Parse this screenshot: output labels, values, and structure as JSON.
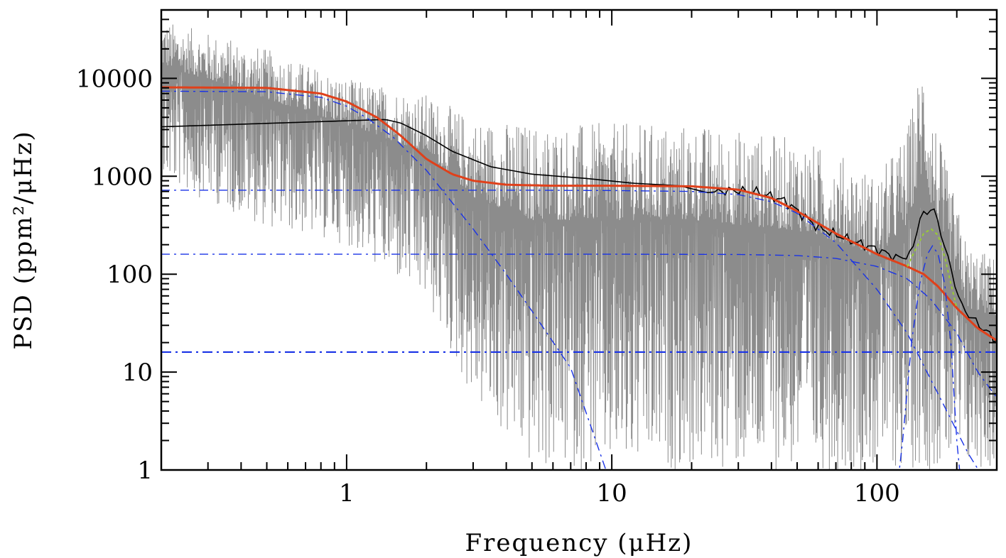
{
  "chart_data": {
    "type": "line",
    "xlabel": "Frequency (μHz)",
    "ylabel": "PSD (ppm²/μHz)",
    "x_scale": "log",
    "y_scale": "log",
    "xlim": [
      0.2,
      283
    ],
    "ylim": [
      1,
      50000
    ],
    "x_ticks": [
      {
        "value": 1,
        "label": "1"
      },
      {
        "value": 10,
        "label": "10"
      },
      {
        "value": 100,
        "label": "100"
      }
    ],
    "y_ticks": [
      {
        "value": 1,
        "label": "1"
      },
      {
        "value": 10,
        "label": "10"
      },
      {
        "value": 100,
        "label": "100"
      },
      {
        "value": 1000,
        "label": "1000"
      },
      {
        "value": 10000,
        "label": "10000"
      }
    ],
    "grid": false,
    "legend": "none",
    "series": [
      {
        "style": "raw-spectrum",
        "color": "#8c8c8c",
        "note_noise_range": "rough envelope; upper and lower bound in PSD",
        "x": [
          0.2,
          0.5,
          1,
          2,
          3,
          5,
          10,
          20,
          30,
          50,
          80,
          100,
          130,
          150,
          160,
          180,
          220,
          283
        ],
        "y_max": [
          40000,
          20000,
          10000,
          7000,
          4000,
          3500,
          3500,
          3500,
          3000,
          2500,
          1500,
          1000,
          3000,
          20000,
          6000,
          1500,
          200,
          150
        ],
        "y_min": [
          900,
          300,
          200,
          50,
          5,
          1,
          1,
          1,
          1,
          1,
          1,
          1,
          1,
          1,
          1,
          1,
          1,
          1
        ]
      },
      {
        "style": "smoothed-spectrum",
        "color": "#000000",
        "x": [
          0.2,
          1.4,
          1.6,
          2.0,
          2.5,
          3.5,
          5,
          8,
          12,
          18,
          23,
          28,
          35,
          45,
          60,
          80,
          100,
          120,
          135,
          145,
          155,
          162,
          170,
          180,
          190,
          210,
          250,
          283
        ],
        "y": [
          3200,
          3800,
          3500,
          2600,
          1800,
          1250,
          1050,
          950,
          850,
          800,
          680,
          720,
          700,
          560,
          300,
          220,
          180,
          145,
          160,
          380,
          420,
          520,
          320,
          200,
          110,
          45,
          28,
          21
        ]
      },
      {
        "style": "global-fit",
        "color": "#e0401a",
        "x": [
          0.2,
          0.5,
          0.8,
          1.0,
          1.3,
          1.6,
          2.0,
          2.5,
          3.0,
          4.0,
          6.0,
          10,
          20,
          30,
          40,
          50,
          70,
          100,
          130,
          150,
          170,
          200,
          240,
          283
        ],
        "y": [
          8100,
          8000,
          7000,
          5800,
          4000,
          2600,
          1500,
          1050,
          900,
          820,
          800,
          800,
          790,
          730,
          600,
          440,
          260,
          160,
          120,
          100,
          75,
          45,
          28,
          21
        ]
      },
      {
        "style": "granulation-component-1",
        "color": "#1a33e6",
        "x": [
          0.2,
          0.5,
          0.8,
          1.0,
          1.2,
          1.5,
          2.0,
          3.0,
          4.0,
          5.0,
          7.0,
          9.5
        ],
        "y": [
          7400,
          7300,
          6400,
          5200,
          3900,
          2500,
          1150,
          290,
          100,
          42,
          11,
          1.0
        ]
      },
      {
        "style": "granulation-component-2",
        "color": "#1a33e6",
        "x": [
          0.2,
          5,
          10,
          20,
          30,
          40,
          50,
          70,
          100,
          130,
          170,
          220,
          283
        ],
        "y": [
          720,
          720,
          715,
          700,
          650,
          550,
          420,
          210,
          70,
          25,
          6,
          1.5,
          0.5
        ]
      },
      {
        "style": "granulation-component-3",
        "color": "#1a33e6",
        "x": [
          0.2,
          10,
          30,
          50,
          70,
          100,
          130,
          160,
          200,
          240,
          283
        ],
        "y": [
          160,
          160,
          159,
          155,
          145,
          120,
          90,
          55,
          25,
          10,
          5.5
        ]
      },
      {
        "style": "white-noise",
        "color": "#1a33e6",
        "x": [
          0.2,
          283
        ],
        "y": [
          16,
          16
        ]
      },
      {
        "style": "oscillation-envelope",
        "color": "#1a33e6",
        "x": [
          118,
          125,
          135,
          145,
          155,
          162,
          170,
          180,
          190,
          200,
          210
        ],
        "y": [
          0.5,
          2,
          20,
          80,
          160,
          195,
          160,
          80,
          20,
          2,
          0.5
        ]
      },
      {
        "style": "oscillation-fit",
        "color": "#9acd32",
        "x": [
          130,
          140,
          150,
          160,
          170,
          180,
          190,
          200
        ],
        "y": [
          120,
          180,
          260,
          290,
          250,
          150,
          80,
          45
        ]
      }
    ]
  }
}
